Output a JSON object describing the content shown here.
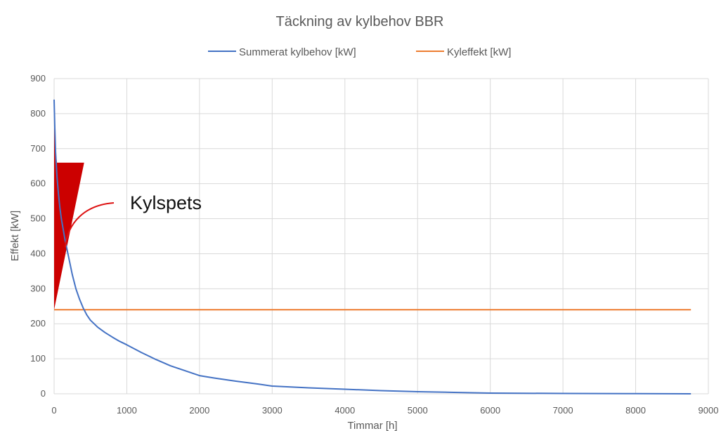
{
  "chart_data": {
    "type": "line",
    "title": "Täckning av kylbehov BBR",
    "xlabel": "Timmar [h]",
    "ylabel": "Effekt [kW]",
    "xlim": [
      0,
      9000
    ],
    "ylim": [
      0,
      900
    ],
    "xticks": [
      0,
      1000,
      2000,
      3000,
      4000,
      5000,
      6000,
      7000,
      8000,
      9000
    ],
    "yticks": [
      0,
      100,
      200,
      300,
      400,
      500,
      600,
      700,
      800,
      900
    ],
    "grid": true,
    "legend": "top",
    "annotation": "Kylspets",
    "colors": {
      "demand": "#4472c4",
      "capacity": "#ed7d31",
      "peak_fill": "#cc0000",
      "arrow": "#dd1111",
      "grid": "#d9d9d9"
    },
    "series": [
      {
        "name": "Summerat kylbehov [kW]",
        "x": [
          0,
          10,
          20,
          40,
          60,
          80,
          100,
          150,
          200,
          250,
          300,
          350,
          400,
          450,
          500,
          600,
          700,
          800,
          900,
          1000,
          1200,
          1400,
          1600,
          1800,
          2000,
          2200,
          2500,
          2800,
          3000,
          3500,
          4000,
          4500,
          5000,
          5500,
          6000,
          7000,
          8000,
          8760
        ],
        "values": [
          840,
          760,
          690,
          620,
          570,
          530,
          500,
          440,
          390,
          340,
          300,
          270,
          245,
          225,
          210,
          190,
          175,
          162,
          150,
          140,
          118,
          98,
          80,
          66,
          52,
          45,
          36,
          28,
          22,
          17,
          13,
          9,
          6,
          4,
          2,
          1,
          0.5,
          0
        ]
      },
      {
        "name": "Kyleffekt [kW]",
        "x": [
          0,
          8760
        ],
        "values": [
          240,
          240
        ]
      }
    ]
  }
}
